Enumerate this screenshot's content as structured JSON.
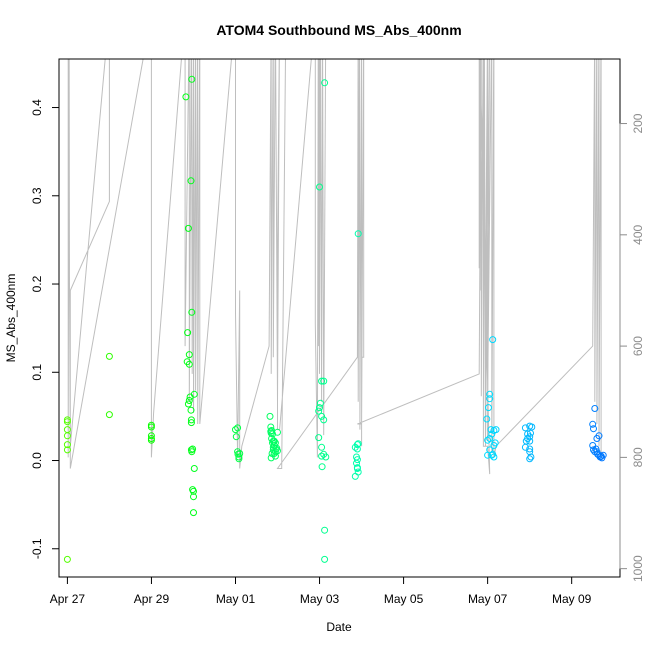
{
  "chart_data": {
    "type": "scatter",
    "title": "ATOM4 Southbound MS_Abs_400nm",
    "xlabel": "Date",
    "ylabel": "MS_Abs_400nm",
    "xlim": [
      -0.2,
      13.15
    ],
    "ylim": [
      -0.132,
      0.455
    ],
    "x_ticks": [
      {
        "value": 0,
        "label": "Apr 27"
      },
      {
        "value": 2,
        "label": "Apr 29"
      },
      {
        "value": 4,
        "label": "May 01"
      },
      {
        "value": 6,
        "label": "May 03"
      },
      {
        "value": 8,
        "label": "May 05"
      },
      {
        "value": 10,
        "label": "May 07"
      },
      {
        "value": 12,
        "label": "May 09"
      }
    ],
    "y_ticks": [
      {
        "value": -0.1,
        "label": "-0.1"
      },
      {
        "value": 0.0,
        "label": "0.0"
      },
      {
        "value": 0.1,
        "label": "0.1"
      },
      {
        "value": 0.2,
        "label": "0.2"
      },
      {
        "value": 0.3,
        "label": "0.3"
      },
      {
        "value": 0.4,
        "label": "0.4"
      }
    ],
    "secondary_axis": {
      "label": "",
      "reversed": true,
      "lim": [
        1015,
        84
      ],
      "ticks": [
        {
          "value": 200,
          "label": "200"
        },
        {
          "value": 400,
          "label": "400"
        },
        {
          "value": 600,
          "label": "600"
        },
        {
          "value": 800,
          "label": "800"
        },
        {
          "value": 1000,
          "label": "1000"
        }
      ],
      "color": "#bebebe",
      "altitude_trace": [
        [
          0.02,
          0
        ],
        [
          0.02,
          500
        ],
        [
          0.02,
          800
        ],
        [
          0.04,
          0
        ],
        [
          0.05,
          500
        ],
        [
          0.07,
          780
        ],
        [
          1.0,
          0
        ],
        [
          1.0,
          340
        ],
        [
          0.07,
          500
        ],
        [
          0.07,
          820
        ],
        [
          2.0,
          0
        ],
        [
          2.0,
          470
        ],
        [
          2.0,
          800
        ],
        [
          2.05,
          720
        ],
        [
          2.8,
          0
        ],
        [
          2.8,
          600
        ],
        [
          2.9,
          0
        ],
        [
          2.9,
          700
        ],
        [
          2.95,
          0
        ],
        [
          2.97,
          650
        ],
        [
          3.0,
          0
        ],
        [
          3.0,
          720
        ],
        [
          3.05,
          0
        ],
        [
          3.05,
          680
        ],
        [
          3.1,
          0
        ],
        [
          3.1,
          740
        ],
        [
          3.15,
          0
        ],
        [
          3.15,
          740
        ],
        [
          4.0,
          0
        ],
        [
          4.0,
          540
        ],
        [
          4.05,
          800
        ],
        [
          4.1,
          500
        ],
        [
          4.1,
          820
        ],
        [
          4.15,
          780
        ],
        [
          4.8,
          600
        ],
        [
          4.85,
          0
        ],
        [
          4.85,
          650
        ],
        [
          4.9,
          0
        ],
        [
          4.9,
          620
        ],
        [
          4.95,
          0
        ],
        [
          5.0,
          700
        ],
        [
          5.05,
          0
        ],
        [
          5.0,
          440
        ],
        [
          5.0,
          750
        ],
        [
          5.05,
          750
        ],
        [
          5.9,
          0
        ],
        [
          5.9,
          560
        ],
        [
          5.95,
          800
        ],
        [
          5.97,
          0
        ],
        [
          5.98,
          600
        ],
        [
          6.0,
          0
        ],
        [
          6.0,
          650
        ],
        [
          6.02,
          0
        ],
        [
          6.05,
          700
        ],
        [
          6.07,
          0
        ],
        [
          6.1,
          760
        ],
        [
          6.15,
          0
        ],
        [
          5.2,
          0
        ],
        [
          5.1,
          820
        ],
        [
          5.0,
          820
        ],
        [
          6.9,
          620
        ],
        [
          6.92,
          0
        ],
        [
          6.92,
          700
        ],
        [
          6.95,
          0
        ],
        [
          6.96,
          750
        ],
        [
          7.0,
          0
        ],
        [
          7.0,
          780
        ],
        [
          7.0,
          620
        ],
        [
          7.05,
          620
        ],
        [
          7.05,
          0
        ],
        [
          7.0,
          740
        ],
        [
          6.9,
          740
        ],
        [
          9.8,
          650
        ],
        [
          9.85,
          0
        ],
        [
          9.85,
          690
        ],
        [
          9.9,
          0
        ],
        [
          9.9,
          740
        ],
        [
          9.92,
          0
        ],
        [
          9.95,
          760
        ],
        [
          10.0,
          0
        ],
        [
          10.0,
          770
        ],
        [
          10.05,
          0
        ],
        [
          9.95,
          780
        ],
        [
          9.9,
          0
        ],
        [
          9.9,
          780
        ],
        [
          10.0,
          780
        ],
        [
          10.05,
          830
        ],
        [
          9.8,
          0
        ],
        [
          9.8,
          460
        ],
        [
          9.82,
          0
        ],
        [
          9.82,
          500
        ],
        [
          9.85,
          0
        ],
        [
          9.85,
          520
        ],
        [
          9.9,
          0
        ],
        [
          9.95,
          540
        ],
        [
          10.0,
          0
        ],
        [
          10.0,
          690
        ],
        [
          10.1,
          0
        ],
        [
          10.1,
          790
        ],
        [
          10.15,
          0
        ],
        [
          10.15,
          800
        ],
        [
          10.2,
          780
        ],
        [
          12.5,
          600
        ],
        [
          12.55,
          0
        ],
        [
          12.55,
          700
        ],
        [
          12.6,
          0
        ],
        [
          12.6,
          740
        ],
        [
          12.65,
          0
        ],
        [
          12.65,
          780
        ],
        [
          12.7,
          0
        ],
        [
          12.7,
          800
        ]
      ]
    },
    "series": [
      {
        "name": "MS_Abs_400nm",
        "points": [
          [
            0.0,
            0.046
          ],
          [
            0.0,
            0.044
          ],
          [
            0.0,
            0.035
          ],
          [
            0.0,
            0.028
          ],
          [
            0.0,
            0.018
          ],
          [
            0.0,
            0.012
          ],
          [
            0.0,
            -0.112
          ],
          [
            1.0,
            0.118
          ],
          [
            1.0,
            0.052
          ],
          [
            2.0,
            0.04
          ],
          [
            2.0,
            0.038
          ],
          [
            2.0,
            0.028
          ],
          [
            2.0,
            0.025
          ],
          [
            2.0,
            0.023
          ],
          [
            2.82,
            0.412
          ],
          [
            2.86,
            0.145
          ],
          [
            2.85,
            0.112
          ],
          [
            2.88,
            0.263
          ],
          [
            2.9,
            0.109
          ],
          [
            2.9,
            0.12
          ],
          [
            2.9,
            0.068
          ],
          [
            2.88,
            0.064
          ],
          [
            2.92,
            0.072
          ],
          [
            2.94,
            0.317
          ],
          [
            2.96,
            0.432
          ],
          [
            2.96,
            0.168
          ],
          [
            2.94,
            0.057
          ],
          [
            2.95,
            0.043
          ],
          [
            2.95,
            0.046
          ],
          [
            2.95,
            0.012
          ],
          [
            2.96,
            0.01
          ],
          [
            2.98,
            0.013
          ],
          [
            2.98,
            -0.033
          ],
          [
            3.0,
            -0.035
          ],
          [
            3.0,
            -0.041
          ],
          [
            3.02,
            -0.009
          ],
          [
            3.0,
            -0.059
          ],
          [
            3.02,
            0.075
          ],
          [
            4.0,
            0.035
          ],
          [
            4.02,
            0.027
          ],
          [
            4.05,
            0.037
          ],
          [
            4.05,
            0.01
          ],
          [
            4.06,
            0.007
          ],
          [
            4.08,
            0.004
          ],
          [
            4.08,
            0.002
          ],
          [
            4.1,
            0.008
          ],
          [
            4.82,
            0.05
          ],
          [
            4.84,
            0.038
          ],
          [
            4.84,
            0.033
          ],
          [
            4.85,
            0.031
          ],
          [
            4.86,
            0.034
          ],
          [
            4.86,
            0.025
          ],
          [
            4.88,
            0.03
          ],
          [
            4.88,
            0.02
          ],
          [
            4.9,
            0.015
          ],
          [
            4.9,
            0.012
          ],
          [
            4.92,
            0.008
          ],
          [
            4.85,
            0.003
          ],
          [
            4.87,
            0.008
          ],
          [
            4.92,
            0.017
          ],
          [
            4.92,
            0.022
          ],
          [
            4.95,
            0.01
          ],
          [
            4.95,
            0.02
          ],
          [
            4.96,
            0.013
          ],
          [
            4.98,
            0.014
          ],
          [
            5.0,
            0.011
          ],
          [
            5.0,
            0.032
          ],
          [
            4.9,
            0.022
          ],
          [
            4.95,
            0.005
          ],
          [
            6.0,
            0.06
          ],
          [
            6.02,
            0.065
          ],
          [
            5.98,
            0.056
          ],
          [
            6.05,
            0.05
          ],
          [
            6.1,
            0.046
          ],
          [
            6.05,
            0.09
          ],
          [
            6.1,
            0.09
          ],
          [
            6.0,
            0.31
          ],
          [
            6.12,
            0.428
          ],
          [
            5.98,
            0.026
          ],
          [
            6.05,
            0.015
          ],
          [
            6.05,
            0.005
          ],
          [
            6.1,
            0.007
          ],
          [
            6.06,
            -0.007
          ],
          [
            6.15,
            0.004
          ],
          [
            6.12,
            -0.079
          ],
          [
            6.12,
            -0.112
          ],
          [
            6.92,
            0.257
          ],
          [
            6.9,
            0.018
          ],
          [
            6.9,
            0.013
          ],
          [
            6.88,
            0.004
          ],
          [
            6.9,
            0.001
          ],
          [
            6.85,
            0.015
          ],
          [
            6.88,
            -0.003
          ],
          [
            6.9,
            -0.009
          ],
          [
            6.92,
            -0.013
          ],
          [
            6.85,
            -0.018
          ],
          [
            6.92,
            0.019
          ],
          [
            6.9,
            -0.008
          ],
          [
            9.98,
            0.047
          ],
          [
            10.02,
            0.06
          ],
          [
            10.05,
            0.07
          ],
          [
            10.05,
            0.075
          ],
          [
            10.12,
            0.137
          ],
          [
            10.0,
            0.023
          ],
          [
            10.05,
            0.025
          ],
          [
            10.08,
            0.035
          ],
          [
            10.1,
            0.03
          ],
          [
            10.15,
            0.034
          ],
          [
            10.05,
            0.012
          ],
          [
            10.1,
            0.006
          ],
          [
            10.12,
            0.007
          ],
          [
            10.15,
            0.017
          ],
          [
            10.18,
            0.02
          ],
          [
            10.0,
            0.006
          ],
          [
            10.15,
            0.004
          ],
          [
            10.2,
            0.035
          ],
          [
            10.9,
            0.037
          ],
          [
            10.95,
            0.03
          ],
          [
            10.95,
            0.025
          ],
          [
            11.0,
            0.039
          ],
          [
            11.0,
            0.027
          ],
          [
            11.0,
            0.022
          ],
          [
            11.0,
            0.013
          ],
          [
            11.0,
            0.002
          ],
          [
            10.9,
            0.015
          ],
          [
            10.92,
            0.022
          ],
          [
            11.02,
            0.031
          ],
          [
            11.03,
            0.004
          ],
          [
            11.05,
            0.038
          ],
          [
            11.0,
            0.01
          ],
          [
            12.5,
            0.041
          ],
          [
            12.52,
            0.036
          ],
          [
            12.55,
            0.059
          ],
          [
            12.6,
            0.025
          ],
          [
            12.65,
            0.028
          ],
          [
            12.5,
            0.017
          ],
          [
            12.52,
            0.012
          ],
          [
            12.55,
            0.01
          ],
          [
            12.58,
            0.013
          ],
          [
            12.6,
            0.01
          ],
          [
            12.62,
            0.007
          ],
          [
            12.65,
            0.006
          ],
          [
            12.68,
            0.004
          ],
          [
            12.7,
            0.005
          ],
          [
            12.72,
            0.003
          ],
          [
            12.75,
            0.006
          ]
        ]
      }
    ],
    "color_scale": {
      "type": "rainbow-by-date",
      "start_hue": 100,
      "end_hue": 212
    }
  }
}
